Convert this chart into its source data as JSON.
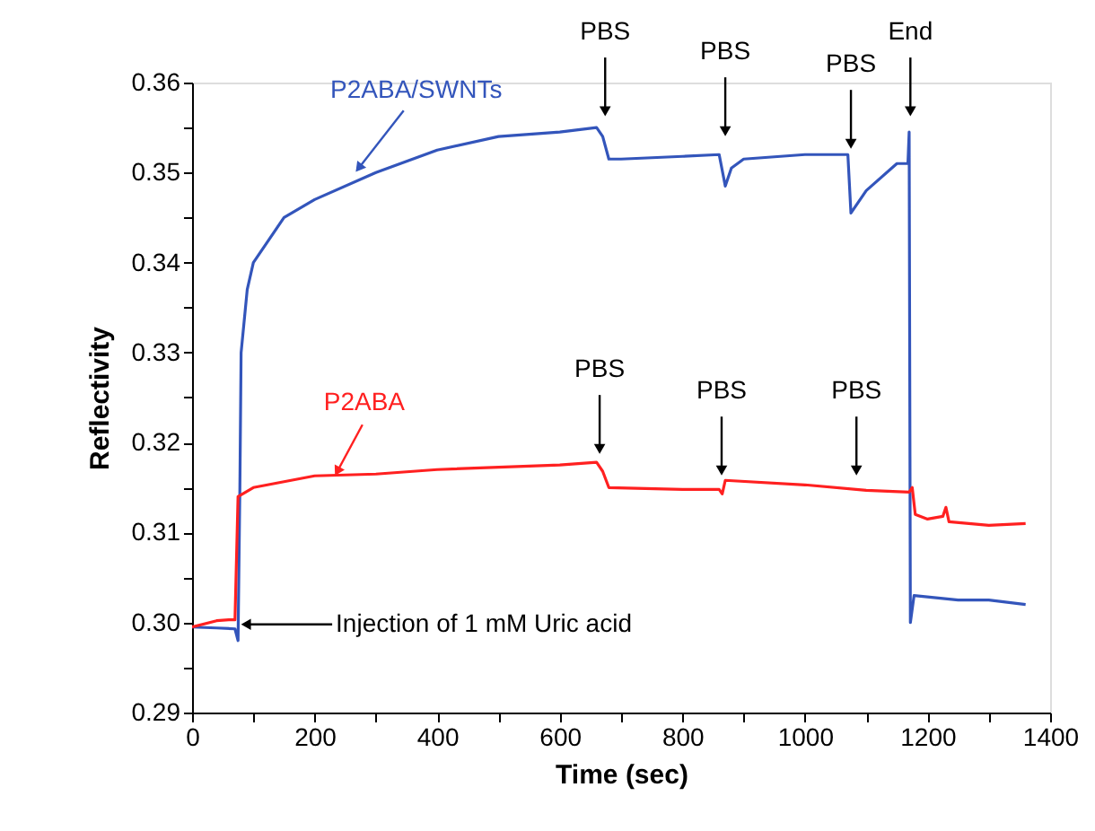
{
  "chart_data": {
    "type": "line",
    "xlabel": "Time (sec)",
    "ylabel": "Reflectivity",
    "xlim": [
      0,
      1400
    ],
    "ylim": [
      0.29,
      0.36
    ],
    "xticks": [
      0,
      {
        "value": 100,
        "label": null
      },
      200,
      {
        "value": 300,
        "label": null
      },
      400,
      {
        "value": 500,
        "label": null
      },
      600,
      {
        "value": 700,
        "label": null
      },
      800,
      {
        "value": 900,
        "label": null
      },
      1000,
      {
        "value": 1100,
        "label": null
      },
      1200,
      {
        "value": 1300,
        "label": null
      },
      1400
    ],
    "yticks": [
      0.29,
      {
        "value": 0.295,
        "label": null
      },
      {
        "value": 0.3,
        "label": "0.30"
      },
      {
        "value": 0.305,
        "label": null
      },
      0.31,
      {
        "value": 0.315,
        "label": null
      },
      0.32,
      {
        "value": 0.325,
        "label": null
      },
      0.33,
      {
        "value": 0.335,
        "label": null
      },
      0.34,
      {
        "value": 0.345,
        "label": null
      },
      0.35,
      {
        "value": 0.355,
        "label": null
      },
      0.36
    ],
    "grid": false,
    "marker": "none",
    "line_style": "solid",
    "series": [
      {
        "color": "#3355bb",
        "x": [
          0,
          40,
          70,
          75,
          78,
          80,
          90,
          100,
          150,
          200,
          300,
          400,
          500,
          600,
          660,
          670,
          680,
          700,
          800,
          860,
          870,
          880,
          900,
          1000,
          1070,
          1075,
          1100,
          1150,
          1168,
          1170,
          1172,
          1178,
          1250,
          1300,
          1360
        ],
        "values": [
          0.2995,
          0.2994,
          0.2993,
          0.298,
          0.315,
          0.33,
          0.337,
          0.34,
          0.345,
          0.347,
          0.35,
          0.3525,
          0.354,
          0.3545,
          0.355,
          0.354,
          0.3515,
          0.3515,
          0.3518,
          0.352,
          0.3485,
          0.3505,
          0.3515,
          0.352,
          0.352,
          0.3455,
          0.348,
          0.351,
          0.351,
          0.3545,
          0.3,
          0.303,
          0.3025,
          0.3025,
          0.302
        ]
      },
      {
        "color": "#ff2020",
        "x": [
          0,
          40,
          60,
          70,
          75,
          100,
          200,
          300,
          400,
          600,
          660,
          670,
          680,
          800,
          860,
          865,
          870,
          1000,
          1100,
          1170,
          1175,
          1180,
          1200,
          1225,
          1230,
          1235,
          1300,
          1360
        ],
        "values": [
          0.2995,
          0.3002,
          0.3003,
          0.3003,
          0.314,
          0.315,
          0.3163,
          0.3165,
          0.317,
          0.3175,
          0.3178,
          0.3168,
          0.315,
          0.3148,
          0.3148,
          0.3143,
          0.3158,
          0.3153,
          0.3147,
          0.3145,
          0.315,
          0.312,
          0.3115,
          0.3118,
          0.3128,
          0.3112,
          0.3108,
          0.311
        ]
      }
    ],
    "annotations": [
      {
        "text": "P2ABA/SWNTs",
        "x": 272,
        "y": 0.3505
      },
      {
        "text": "P2ABA",
        "x": 237,
        "y": 0.3168
      },
      {
        "text": "Injection of 1 mM Uric acid",
        "x": 88,
        "y": 0.2998
      },
      {
        "text": "PBS",
        "x": 674,
        "y": 0.3568
      },
      {
        "text": "PBS",
        "x": 870,
        "y": 0.3546
      },
      {
        "text": "PBS",
        "x": 1075,
        "y": 0.3532
      },
      {
        "text": "End",
        "x": 1172,
        "y": 0.3568
      },
      {
        "text": "PBS",
        "x": 665,
        "y": 0.3193
      },
      {
        "text": "PBS",
        "x": 864,
        "y": 0.3169
      },
      {
        "text": "PBS",
        "x": 1084,
        "y": 0.3169
      }
    ]
  }
}
